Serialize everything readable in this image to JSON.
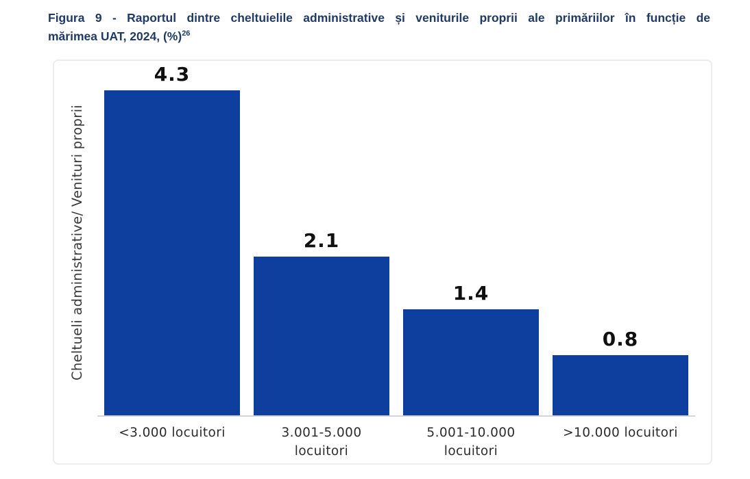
{
  "document": {
    "figure_title_line1": "Figura 9 - Raportul dintre cheltuielile administrative și veniturile proprii ale primăriilor în funcție de",
    "figure_title_line2": "mărimea UAT, 2024, (%)",
    "figure_title_superscript": "26"
  },
  "chart_data": {
    "type": "bar",
    "title": "Figura 9 - Raportul dintre cheltuielile administrative și veniturile proprii ale primăriilor în funcție de mărimea UAT, 2024, (%)",
    "footnote_marker": "26",
    "xlabel": "",
    "ylabel": "Cheltueli administrative/ Venituri proprii",
    "categories": [
      "<3.000 locuitori",
      "3.001-5.000 locuitori",
      "5.001-10.000 locuitori",
      ">10.000 locuitori"
    ],
    "category_label_lines": [
      [
        "<3.000 locuitori"
      ],
      [
        "3.001-5.000",
        "locuitori"
      ],
      [
        "5.001-10.000",
        "locuitori"
      ],
      [
        ">10.000 locuitori"
      ]
    ],
    "values": [
      4.3,
      2.1,
      1.4,
      0.8
    ],
    "data_labels": [
      "4.3",
      "2.1",
      "1.4",
      "0.8"
    ],
    "ylim": [
      0,
      4.7
    ],
    "grid": false,
    "legend": false,
    "colors": {
      "bar": "#0f3f9e",
      "title_text": "#203a64",
      "baseline": "#d6d6d6",
      "frame_border": "#ececec",
      "data_label": "#101010",
      "category_label": "#2b2b2b"
    }
  }
}
